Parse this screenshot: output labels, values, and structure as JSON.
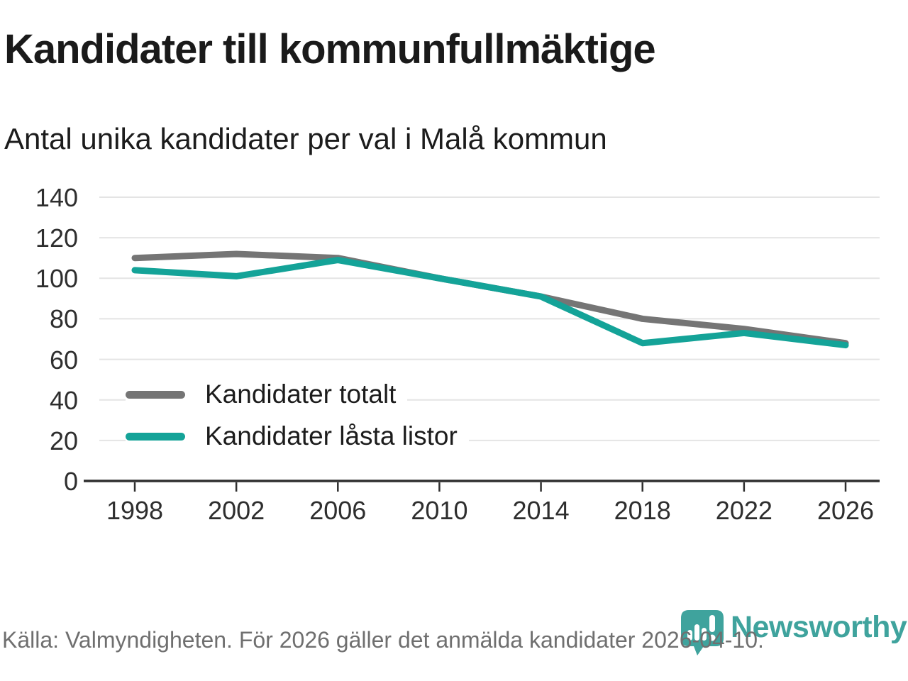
{
  "header": {
    "title": "Kandidater till kommunfullmäktige",
    "subtitle": "Antal unika kandidater per val i Malå kommun"
  },
  "chart_data": {
    "type": "line",
    "title": "Kandidater till kommunfullmäktige",
    "subtitle": "Antal unika kandidater per val i Malå kommun",
    "x": [
      1998,
      2002,
      2006,
      2010,
      2014,
      2018,
      2022,
      2026
    ],
    "series": [
      {
        "name": "Kandidater totalt",
        "color": "#757575",
        "values": [
          110,
          112,
          110,
          100,
          91,
          80,
          75,
          68
        ]
      },
      {
        "name": "Kandidater låsta listor",
        "color": "#14a398",
        "values": [
          104,
          101,
          109,
          100,
          91,
          68,
          73,
          67
        ]
      }
    ],
    "ylim": [
      0,
      140
    ],
    "y_ticks": [
      0,
      20,
      40,
      60,
      80,
      100,
      120,
      140
    ],
    "xlabel": "",
    "ylabel": "",
    "grid": "horizontal",
    "legend_position": "inside-bottom-left"
  },
  "footer": {
    "source": "Källa: Valmyndigheten. För 2026 gäller det anmälda kandidater 2026-04-10."
  },
  "logo": {
    "text": "Newsworthy",
    "icon": "newsworthy-barchart-pin-icon",
    "color": "#3fa39d"
  },
  "colors": {
    "grid": "#e4e4e4",
    "axis": "#2f2f2f",
    "tick_label": "#2e2e2e",
    "footer_text": "#6f6f6f",
    "title_text": "#1a1a1a"
  }
}
